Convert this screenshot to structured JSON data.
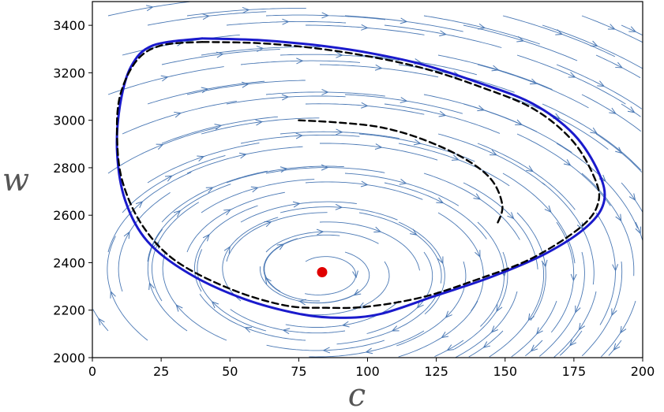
{
  "chart_data": {
    "type": "streamplot",
    "xlabel": "c",
    "ylabel": "w",
    "xlim": [
      0,
      200
    ],
    "ylim": [
      2000,
      3500
    ],
    "xticks": [
      0,
      25,
      50,
      75,
      100,
      125,
      150,
      175,
      200
    ],
    "yticks": [
      2000,
      2200,
      2400,
      2600,
      2800,
      3000,
      3200,
      3400
    ],
    "grid": false,
    "equilibrium": {
      "c": 83.5,
      "w": 2360,
      "color": "#e00000"
    },
    "series": [
      {
        "style": "solid",
        "color": "#1a1acc",
        "points": [
          [
            40,
            3345
          ],
          [
            60,
            3338
          ],
          [
            80,
            3318
          ],
          [
            100,
            3285
          ],
          [
            120,
            3235
          ],
          [
            140,
            3160
          ],
          [
            160,
            3070
          ],
          [
            175,
            2940
          ],
          [
            184,
            2780
          ],
          [
            186,
            2660
          ],
          [
            180,
            2555
          ],
          [
            165,
            2440
          ],
          [
            145,
            2340
          ],
          [
            125,
            2262
          ],
          [
            105,
            2185
          ],
          [
            90,
            2168
          ],
          [
            75,
            2185
          ],
          [
            55,
            2248
          ],
          [
            35,
            2355
          ],
          [
            20,
            2490
          ],
          [
            12,
            2660
          ],
          [
            9,
            2860
          ],
          [
            10,
            3060
          ],
          [
            14,
            3225
          ],
          [
            22,
            3315
          ],
          [
            40,
            3345
          ]
        ]
      },
      {
        "style": "dashed",
        "color": "#000000",
        "points": [
          [
            40,
            3330
          ],
          [
            60,
            3325
          ],
          [
            80,
            3305
          ],
          [
            100,
            3270
          ],
          [
            120,
            3220
          ],
          [
            140,
            3145
          ],
          [
            160,
            3050
          ],
          [
            174,
            2920
          ],
          [
            182,
            2770
          ],
          [
            184,
            2660
          ],
          [
            178,
            2555
          ],
          [
            160,
            2420
          ],
          [
            140,
            2330
          ],
          [
            120,
            2255
          ],
          [
            100,
            2215
          ],
          [
            85,
            2210
          ],
          [
            70,
            2220
          ],
          [
            50,
            2290
          ],
          [
            30,
            2410
          ],
          [
            18,
            2560
          ],
          [
            11,
            2740
          ],
          [
            9,
            2920
          ],
          [
            10,
            3100
          ],
          [
            16,
            3250
          ],
          [
            25,
            3315
          ],
          [
            40,
            3330
          ]
        ]
      },
      {
        "style": "dashed",
        "color": "#000000",
        "points": [
          [
            75,
            3000
          ],
          [
            90,
            2990
          ],
          [
            105,
            2970
          ],
          [
            120,
            2920
          ],
          [
            135,
            2840
          ],
          [
            145,
            2750
          ],
          [
            149,
            2640
          ],
          [
            147,
            2560
          ]
        ]
      }
    ]
  }
}
